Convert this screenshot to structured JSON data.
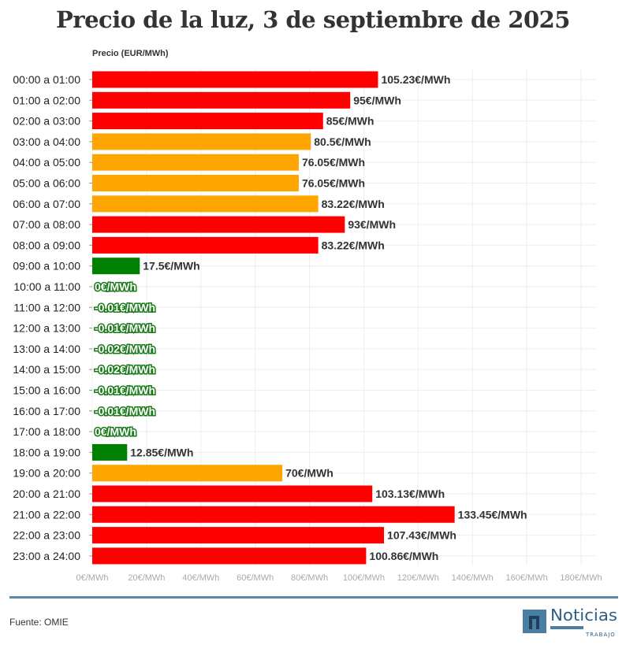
{
  "title": "Precio de la luz, 3 de septiembre de 2025",
  "source": "Fuente: OMIE",
  "logo": {
    "name": "Noticias",
    "sub": "TRABAJO",
    "color": "#4a7ea3"
  },
  "chart_data": {
    "type": "bar",
    "orientation": "horizontal",
    "title": "Precio de la luz, 3 de septiembre de 2025",
    "xlabel": "Precio (EUR/MWh)",
    "xlim": [
      0,
      180
    ],
    "xticks": [
      0,
      20,
      40,
      60,
      80,
      100,
      120,
      140,
      160,
      180
    ],
    "tick_suffix": "€/MWh",
    "grid": true,
    "categories": [
      "00:00 a 01:00",
      "01:00 a 02:00",
      "02:00 a 03:00",
      "03:00 a 04:00",
      "04:00 a 05:00",
      "05:00 a 06:00",
      "06:00 a 07:00",
      "07:00 a 08:00",
      "08:00 a 09:00",
      "09:00 a 10:00",
      "10:00 a 11:00",
      "11:00 a 12:00",
      "12:00 a 13:00",
      "13:00 a 14:00",
      "14:00 a 15:00",
      "15:00 a 16:00",
      "16:00 a 17:00",
      "17:00 a 18:00",
      "18:00 a 19:00",
      "19:00 a 20:00",
      "20:00 a 21:00",
      "21:00 a 22:00",
      "22:00 a 23:00",
      "23:00 a 24:00"
    ],
    "values": [
      105.23,
      95,
      85,
      80.5,
      76.05,
      76.05,
      83.22,
      93,
      83.22,
      17.5,
      0,
      -0.01,
      -0.01,
      -0.02,
      -0.02,
      -0.01,
      -0.01,
      0,
      12.85,
      70,
      103.13,
      133.45,
      107.43,
      100.86
    ],
    "levels": [
      "high",
      "high",
      "high",
      "mid",
      "mid",
      "mid",
      "mid",
      "high",
      "high",
      "low",
      "low",
      "low",
      "low",
      "low",
      "low",
      "low",
      "low",
      "low",
      "low",
      "mid",
      "high",
      "high",
      "high",
      "high"
    ],
    "colors": {
      "high": "#ff0000",
      "mid": "#ffa500",
      "low": "#008000"
    }
  }
}
